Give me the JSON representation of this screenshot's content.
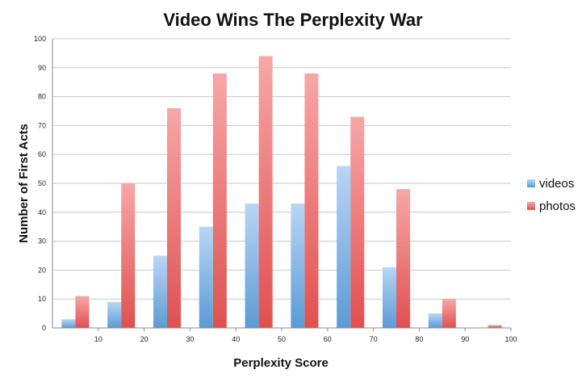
{
  "chart_data": {
    "type": "bar",
    "title": "Video Wins The Perplexity War",
    "xlabel": "Perplexity Score",
    "ylabel": "Number of First Acts",
    "ylim": [
      0,
      100
    ],
    "yticks": [
      0,
      10,
      20,
      30,
      40,
      50,
      60,
      70,
      80,
      90,
      100
    ],
    "xlim": [
      0,
      100
    ],
    "xticks": [
      10,
      20,
      30,
      40,
      50,
      60,
      70,
      80,
      90,
      100
    ],
    "bins": [
      [
        0,
        10
      ],
      [
        10,
        20
      ],
      [
        20,
        30
      ],
      [
        30,
        40
      ],
      [
        40,
        50
      ],
      [
        50,
        60
      ],
      [
        60,
        70
      ],
      [
        70,
        80
      ],
      [
        80,
        90
      ],
      [
        90,
        100
      ]
    ],
    "series": [
      {
        "name": "videos",
        "values": [
          3,
          9,
          25,
          35,
          43,
          43,
          56,
          21,
          5,
          0
        ],
        "color": "#5b9bd5"
      },
      {
        "name": "photos",
        "values": [
          11,
          50,
          76,
          88,
          94,
          88,
          73,
          48,
          10,
          1
        ],
        "color": "#e05050"
      }
    ],
    "grid": true,
    "legend_position": "right"
  }
}
